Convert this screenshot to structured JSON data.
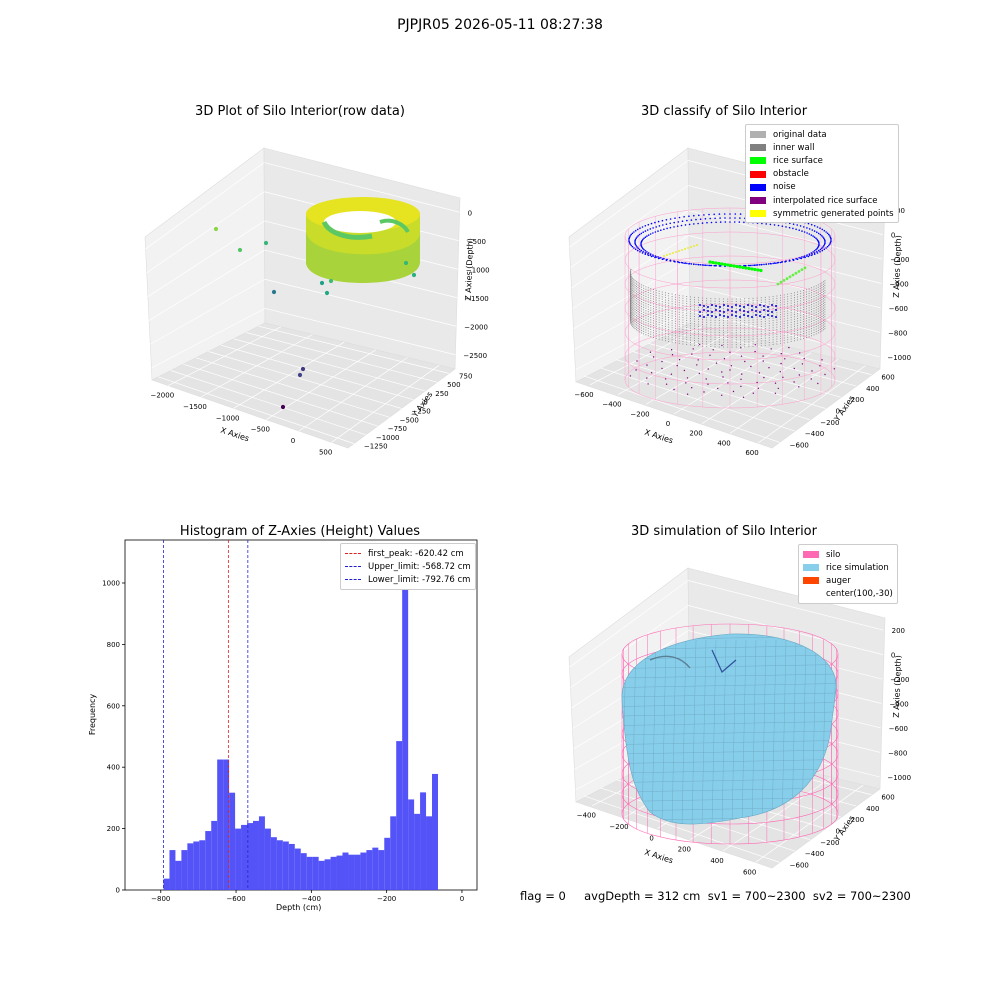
{
  "figure": {
    "suptitle": "PJPJR05 2026-05-11 08:27:38",
    "footer": "flag = 0     avgDepth = 312 cm  sv1 = 700~2300  sv2 = 700~2300"
  },
  "colors": {
    "pane": "#f2f2f2",
    "hist_bar": "#4a4af7",
    "first_peak": "#dd2222",
    "limits": "#2222cc",
    "silo": "#ff69b4",
    "rice_simulation": "#87ceeb",
    "auger": "#ff4500",
    "viridis_yellow": "#d6e21a",
    "viridis_green": "#4fc16b"
  },
  "chart_data": [
    {
      "type": "scatter",
      "title": "3D Plot of Silo Interior(row data)",
      "xlabel": "X Axies",
      "ylabel": "Y Axies",
      "zlabel": "Z Axies (Depth)",
      "x_ticks": [
        "−2000",
        "−1500",
        "−1000",
        "−500",
        "0",
        "500"
      ],
      "y_ticks": [
        "750",
        "500",
        "250",
        "0",
        "−250",
        "−500",
        "−750",
        "−1000",
        "−1250"
      ],
      "z_ticks": [
        "0",
        "−500",
        "−1000",
        "−1500",
        "−2000",
        "−2500"
      ],
      "colormap": "viridis"
    },
    {
      "type": "scatter",
      "title": "3D classify of Silo Interior",
      "xlabel": "X Axies",
      "ylabel": "Y Axies",
      "zlabel": "Z Axies (Depth)",
      "x_ticks": [
        "−600",
        "−400",
        "−200",
        "0",
        "200",
        "400",
        "600"
      ],
      "y_ticks": [
        "600",
        "400",
        "200",
        "0",
        "−200",
        "−400",
        "−600"
      ],
      "z_ticks": [
        "200",
        "0",
        "−200",
        "−400",
        "−600",
        "−800",
        "−1000"
      ],
      "legend": [
        {
          "label": "original data",
          "color": "#b0b0b0"
        },
        {
          "label": "inner wall",
          "color": "#808080"
        },
        {
          "label": "rice surface",
          "color": "#00ff00"
        },
        {
          "label": "obstacle",
          "color": "#ff0000"
        },
        {
          "label": "noise",
          "color": "#0000ff"
        },
        {
          "label": "interpolated rice surface",
          "color": "#800080"
        },
        {
          "label": "symmetric generated points",
          "color": "#ffff00"
        }
      ]
    },
    {
      "type": "bar",
      "title": "Histogram of Z-Axies (Height) Values",
      "xlabel": "Depth (cm)",
      "ylabel": "Frequency",
      "xlim": [
        -895,
        40
      ],
      "ylim": [
        0,
        1140
      ],
      "x_ticks": [
        -800,
        -600,
        -400,
        -200,
        0
      ],
      "x_tick_labels": [
        "−800",
        "−600",
        "−400",
        "−200",
        "0"
      ],
      "y_ticks": [
        0,
        200,
        400,
        600,
        800,
        1000
      ],
      "y_tick_labels": [
        "0",
        "200",
        "400",
        "600",
        "800",
        "1000"
      ],
      "bin_start": -792.76,
      "bin_width": 15.85,
      "values": [
        37,
        130,
        95,
        130,
        152,
        158,
        162,
        192,
        225,
        425,
        425,
        317,
        200,
        212,
        218,
        225,
        240,
        200,
        172,
        162,
        158,
        150,
        135,
        120,
        108,
        108,
        95,
        100,
        108,
        112,
        122,
        115,
        115,
        122,
        130,
        138,
        130,
        170,
        240,
        485,
        1080,
        295,
        248,
        318,
        240,
        378
      ],
      "vlines": [
        {
          "label": "first_peak: -620.42 cm",
          "value": -620.42,
          "color": "#dd2222"
        },
        {
          "label": "Upper_limit: -568.72 cm",
          "value": -568.72,
          "color": "#2222cc"
        },
        {
          "label": "Lower_limit: -792.76 cm",
          "value": -792.76,
          "color": "#2222cc"
        }
      ]
    },
    {
      "type": "surface",
      "title": "3D simulation of Silo Interior",
      "xlabel": "X Axies",
      "ylabel": "Y Axies",
      "zlabel": "Z Axies (Depth)",
      "x_ticks": [
        "−400",
        "−200",
        "0",
        "200",
        "400",
        "600"
      ],
      "y_ticks": [
        "600",
        "400",
        "200",
        "0",
        "−200",
        "−400",
        "−600"
      ],
      "z_ticks": [
        "200",
        "0",
        "−200",
        "−400",
        "−600",
        "−800",
        "−1000"
      ],
      "legend": [
        {
          "label": "silo",
          "color": "#ff69b4"
        },
        {
          "label": "rice simulation",
          "color": "#87ceeb"
        },
        {
          "label": "auger",
          "color": "#ff4500"
        },
        {
          "label": "center(100,-30)",
          "color": ""
        }
      ]
    }
  ]
}
